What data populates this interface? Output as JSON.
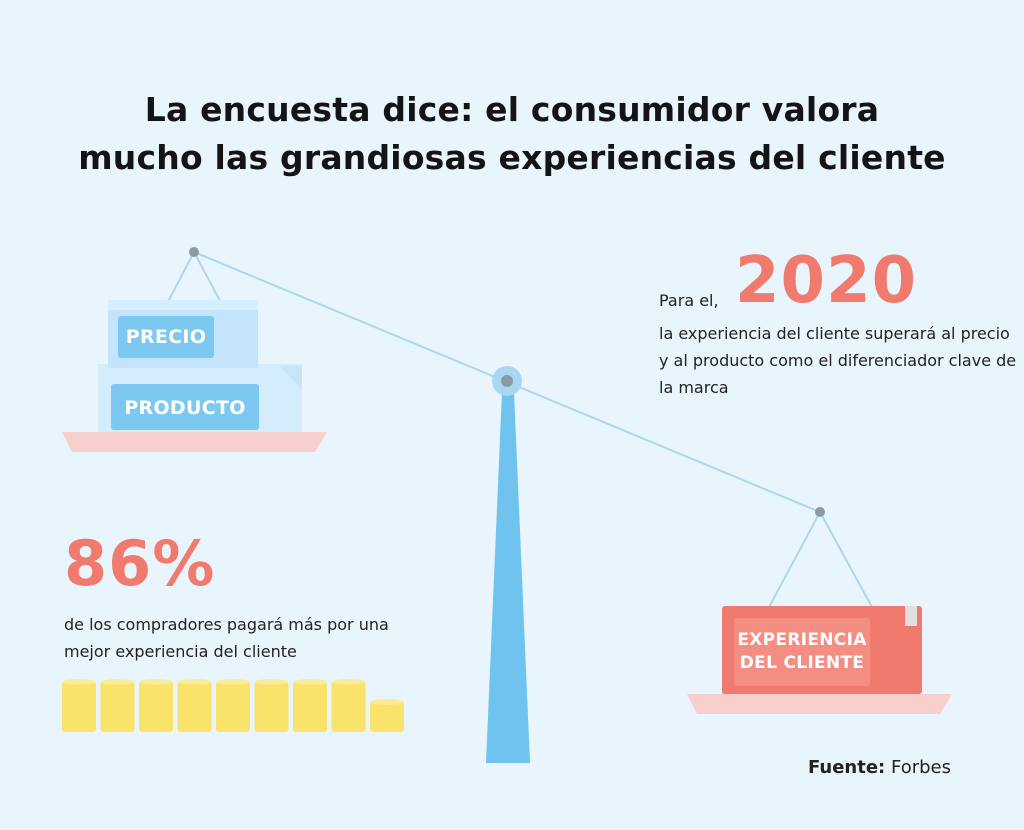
{
  "title": {
    "line1": "La encuesta dice: el consumidor valora",
    "line2": "mucho las grandiosas experiencias del cliente"
  },
  "stat_2020": {
    "lead": "Para el,",
    "year": "2020",
    "body": "la experiencia del cliente superará al precio y al producto como el diferenciador clave de la marca"
  },
  "stat_86": {
    "value": "86%",
    "body": "de los compradores pagará más por una mejor experiencia del cliente",
    "coins_full": 8,
    "coins_total": 9
  },
  "scale": {
    "left_boxes": [
      "PRECIO",
      "PRODUCTO"
    ],
    "right_box": [
      "EXPERIENCIA",
      "DEL CLIENTE"
    ]
  },
  "source": {
    "label": "Fuente:",
    "value": "Forbes"
  },
  "colors": {
    "background": "#e9f5fd",
    "accent": "#f07a6d",
    "beam": "#a9d6f2",
    "post": "#6fc3ee",
    "coin": "#f9e36a",
    "left_box": "#bfe3fb",
    "label_box": "#7cc8f0",
    "right_box": "#f07a6d",
    "pan": "#f9cfcd"
  }
}
